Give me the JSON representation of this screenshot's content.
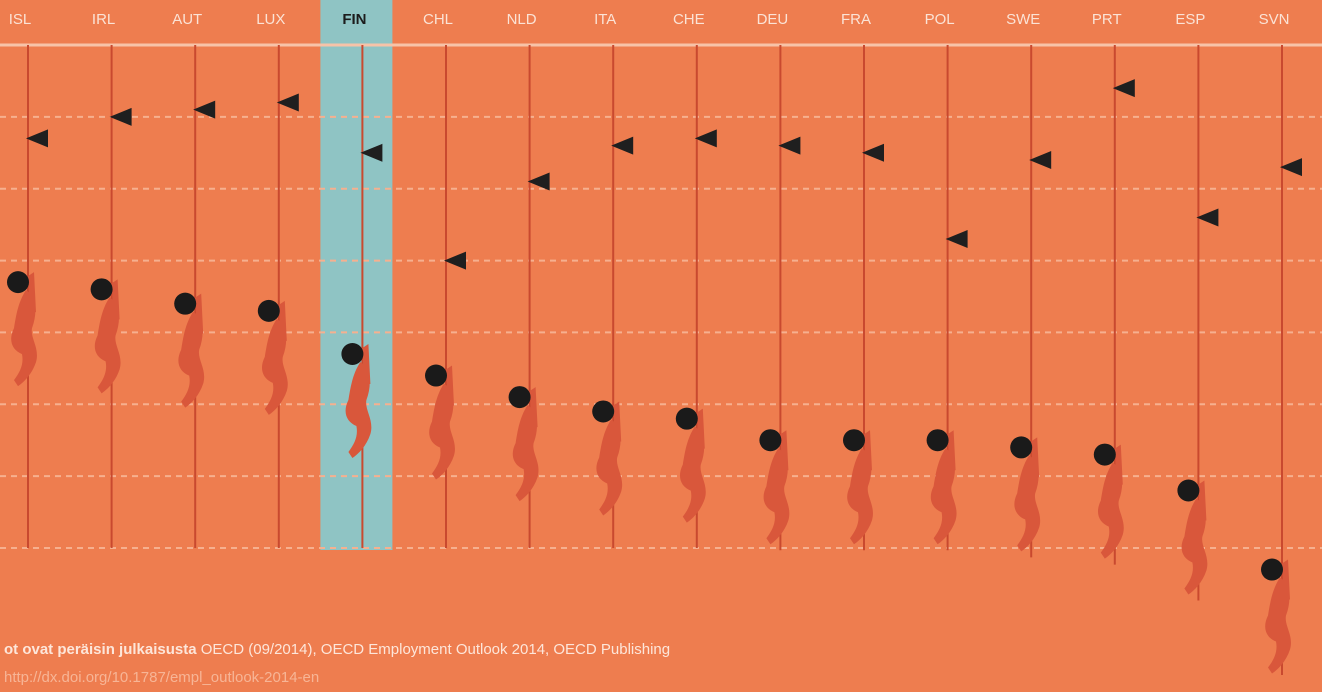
{
  "chart_data": {
    "type": "climb",
    "categories": [
      "ISL",
      "IRL",
      "AUT",
      "LUX",
      "FIN",
      "CHL",
      "NLD",
      "ITA",
      "CHE",
      "DEU",
      "FRA",
      "POL",
      "SWE",
      "PRT",
      "ESP",
      "SVN"
    ],
    "series": [
      {
        "color": "#1f1f1f",
        "values": [
          5.7,
          6.0,
          6.1,
          6.2,
          5.5,
          4.0,
          5.1,
          5.6,
          5.7,
          5.6,
          5.5,
          4.3,
          5.4,
          6.4,
          4.6,
          5.3
        ]
      },
      {
        "color": "#d9573b",
        "values": [
          3.7,
          3.6,
          3.4,
          3.3,
          2.7,
          2.4,
          2.1,
          1.9,
          1.8,
          1.5,
          1.5,
          1.5,
          1.4,
          1.3,
          0.8,
          -0.3
        ]
      }
    ],
    "ylim": [
      0,
      7
    ],
    "yticks": [
      0,
      1,
      2,
      3,
      4,
      5,
      6,
      7
    ],
    "grid": true,
    "highlight": 4,
    "source": {
      "bold": "ot ovat peräisin julkaisusta",
      "text": "OECD (09/2014), OECD Employment Outlook 2014, OECD Publishing",
      "link": "http://dx.doi.org/10.1787/empl_outlook-2014-en"
    }
  }
}
